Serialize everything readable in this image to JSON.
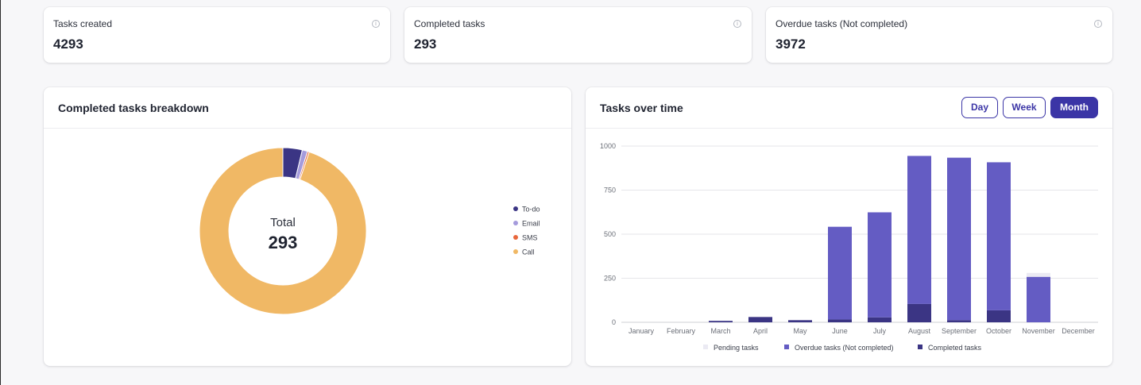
{
  "stats": [
    {
      "label": "Tasks created",
      "value": "4293"
    },
    {
      "label": "Completed tasks",
      "value": "293"
    },
    {
      "label": "Overdue tasks (Not completed)",
      "value": "3972"
    }
  ],
  "breakdown": {
    "title": "Completed tasks breakdown",
    "center_label": "Total",
    "center_value": "293",
    "legend": [
      {
        "label": "To-do",
        "color": "#3b3584"
      },
      {
        "label": "Email",
        "color": "#a59bdc"
      },
      {
        "label": "SMS",
        "color": "#e8673c"
      },
      {
        "label": "Call",
        "color": "#f0b865"
      }
    ]
  },
  "timeline": {
    "title": "Tasks over time",
    "range_buttons": [
      {
        "label": "Day",
        "active": false
      },
      {
        "label": "Week",
        "active": false
      },
      {
        "label": "Month",
        "active": true
      }
    ]
  },
  "chart_data": [
    {
      "type": "pie",
      "categories": [
        "To-do",
        "Email",
        "SMS",
        "Call"
      ],
      "values": [
        11,
        3,
        1,
        278
      ],
      "colors": [
        "#3b3584",
        "#a59bdc",
        "#e8673c",
        "#f0b865"
      ],
      "center_text": [
        "Total",
        "293"
      ],
      "legend": "right"
    },
    {
      "type": "bar",
      "stacked": true,
      "categories": [
        "January",
        "February",
        "March",
        "April",
        "May",
        "June",
        "July",
        "August",
        "September",
        "October",
        "November",
        "December"
      ],
      "series": [
        {
          "name": "Completed tasks",
          "color": "#3b3584",
          "values": [
            0,
            0,
            8,
            30,
            12,
            16,
            28,
            104,
            12,
            68,
            0,
            0
          ]
        },
        {
          "name": "Overdue tasks (Not completed)",
          "color": "#645cc3",
          "values": [
            0,
            0,
            0,
            0,
            0,
            526,
            596,
            840,
            922,
            840,
            258,
            0
          ]
        },
        {
          "name": "Pending tasks",
          "color": "#ebeaf3",
          "values": [
            0,
            0,
            0,
            0,
            0,
            0,
            0,
            0,
            0,
            0,
            22,
            0
          ]
        }
      ],
      "yticks": [
        0,
        250,
        500,
        750,
        1000
      ],
      "ylim": [
        0,
        1000
      ],
      "grid": true,
      "legend": "bottom"
    }
  ]
}
